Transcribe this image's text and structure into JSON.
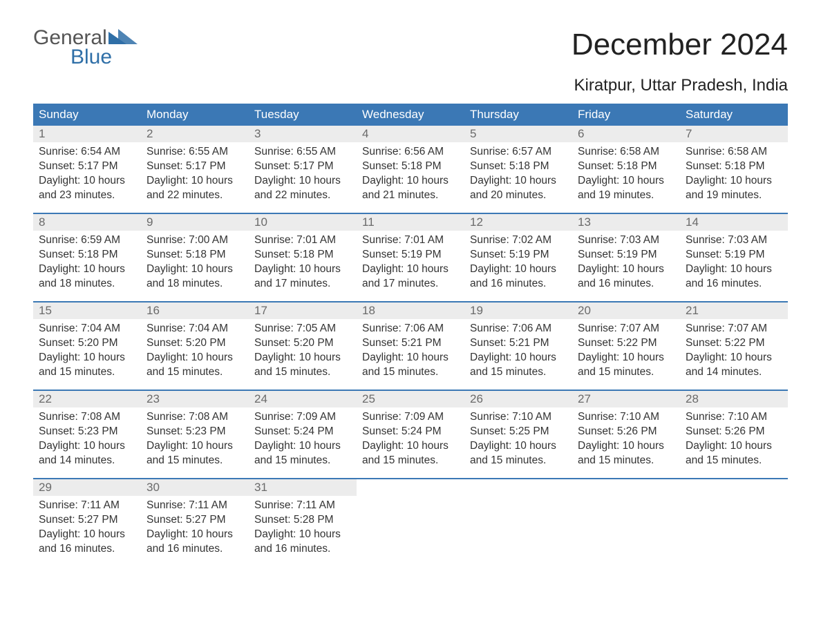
{
  "logo": {
    "line1": "General",
    "line2": "Blue"
  },
  "title": "December 2024",
  "subtitle": "Kiratpur, Uttar Pradesh, India",
  "colors": {
    "header_bg": "#3b78b5",
    "header_text": "#ffffff",
    "daynum_bg": "#ececec",
    "daynum_text": "#6a6a6a",
    "body_text": "#333333",
    "logo_gray": "#555555",
    "logo_blue": "#2f6fa7",
    "week_border": "#3b78b5"
  },
  "day_headers": [
    "Sunday",
    "Monday",
    "Tuesday",
    "Wednesday",
    "Thursday",
    "Friday",
    "Saturday"
  ],
  "weeks": [
    [
      {
        "n": "1",
        "sunrise": "Sunrise: 6:54 AM",
        "sunset": "Sunset: 5:17 PM",
        "dl1": "Daylight: 10 hours",
        "dl2": "and 23 minutes."
      },
      {
        "n": "2",
        "sunrise": "Sunrise: 6:55 AM",
        "sunset": "Sunset: 5:17 PM",
        "dl1": "Daylight: 10 hours",
        "dl2": "and 22 minutes."
      },
      {
        "n": "3",
        "sunrise": "Sunrise: 6:55 AM",
        "sunset": "Sunset: 5:17 PM",
        "dl1": "Daylight: 10 hours",
        "dl2": "and 22 minutes."
      },
      {
        "n": "4",
        "sunrise": "Sunrise: 6:56 AM",
        "sunset": "Sunset: 5:18 PM",
        "dl1": "Daylight: 10 hours",
        "dl2": "and 21 minutes."
      },
      {
        "n": "5",
        "sunrise": "Sunrise: 6:57 AM",
        "sunset": "Sunset: 5:18 PM",
        "dl1": "Daylight: 10 hours",
        "dl2": "and 20 minutes."
      },
      {
        "n": "6",
        "sunrise": "Sunrise: 6:58 AM",
        "sunset": "Sunset: 5:18 PM",
        "dl1": "Daylight: 10 hours",
        "dl2": "and 19 minutes."
      },
      {
        "n": "7",
        "sunrise": "Sunrise: 6:58 AM",
        "sunset": "Sunset: 5:18 PM",
        "dl1": "Daylight: 10 hours",
        "dl2": "and 19 minutes."
      }
    ],
    [
      {
        "n": "8",
        "sunrise": "Sunrise: 6:59 AM",
        "sunset": "Sunset: 5:18 PM",
        "dl1": "Daylight: 10 hours",
        "dl2": "and 18 minutes."
      },
      {
        "n": "9",
        "sunrise": "Sunrise: 7:00 AM",
        "sunset": "Sunset: 5:18 PM",
        "dl1": "Daylight: 10 hours",
        "dl2": "and 18 minutes."
      },
      {
        "n": "10",
        "sunrise": "Sunrise: 7:01 AM",
        "sunset": "Sunset: 5:18 PM",
        "dl1": "Daylight: 10 hours",
        "dl2": "and 17 minutes."
      },
      {
        "n": "11",
        "sunrise": "Sunrise: 7:01 AM",
        "sunset": "Sunset: 5:19 PM",
        "dl1": "Daylight: 10 hours",
        "dl2": "and 17 minutes."
      },
      {
        "n": "12",
        "sunrise": "Sunrise: 7:02 AM",
        "sunset": "Sunset: 5:19 PM",
        "dl1": "Daylight: 10 hours",
        "dl2": "and 16 minutes."
      },
      {
        "n": "13",
        "sunrise": "Sunrise: 7:03 AM",
        "sunset": "Sunset: 5:19 PM",
        "dl1": "Daylight: 10 hours",
        "dl2": "and 16 minutes."
      },
      {
        "n": "14",
        "sunrise": "Sunrise: 7:03 AM",
        "sunset": "Sunset: 5:19 PM",
        "dl1": "Daylight: 10 hours",
        "dl2": "and 16 minutes."
      }
    ],
    [
      {
        "n": "15",
        "sunrise": "Sunrise: 7:04 AM",
        "sunset": "Sunset: 5:20 PM",
        "dl1": "Daylight: 10 hours",
        "dl2": "and 15 minutes."
      },
      {
        "n": "16",
        "sunrise": "Sunrise: 7:04 AM",
        "sunset": "Sunset: 5:20 PM",
        "dl1": "Daylight: 10 hours",
        "dl2": "and 15 minutes."
      },
      {
        "n": "17",
        "sunrise": "Sunrise: 7:05 AM",
        "sunset": "Sunset: 5:20 PM",
        "dl1": "Daylight: 10 hours",
        "dl2": "and 15 minutes."
      },
      {
        "n": "18",
        "sunrise": "Sunrise: 7:06 AM",
        "sunset": "Sunset: 5:21 PM",
        "dl1": "Daylight: 10 hours",
        "dl2": "and 15 minutes."
      },
      {
        "n": "19",
        "sunrise": "Sunrise: 7:06 AM",
        "sunset": "Sunset: 5:21 PM",
        "dl1": "Daylight: 10 hours",
        "dl2": "and 15 minutes."
      },
      {
        "n": "20",
        "sunrise": "Sunrise: 7:07 AM",
        "sunset": "Sunset: 5:22 PM",
        "dl1": "Daylight: 10 hours",
        "dl2": "and 15 minutes."
      },
      {
        "n": "21",
        "sunrise": "Sunrise: 7:07 AM",
        "sunset": "Sunset: 5:22 PM",
        "dl1": "Daylight: 10 hours",
        "dl2": "and 14 minutes."
      }
    ],
    [
      {
        "n": "22",
        "sunrise": "Sunrise: 7:08 AM",
        "sunset": "Sunset: 5:23 PM",
        "dl1": "Daylight: 10 hours",
        "dl2": "and 14 minutes."
      },
      {
        "n": "23",
        "sunrise": "Sunrise: 7:08 AM",
        "sunset": "Sunset: 5:23 PM",
        "dl1": "Daylight: 10 hours",
        "dl2": "and 15 minutes."
      },
      {
        "n": "24",
        "sunrise": "Sunrise: 7:09 AM",
        "sunset": "Sunset: 5:24 PM",
        "dl1": "Daylight: 10 hours",
        "dl2": "and 15 minutes."
      },
      {
        "n": "25",
        "sunrise": "Sunrise: 7:09 AM",
        "sunset": "Sunset: 5:24 PM",
        "dl1": "Daylight: 10 hours",
        "dl2": "and 15 minutes."
      },
      {
        "n": "26",
        "sunrise": "Sunrise: 7:10 AM",
        "sunset": "Sunset: 5:25 PM",
        "dl1": "Daylight: 10 hours",
        "dl2": "and 15 minutes."
      },
      {
        "n": "27",
        "sunrise": "Sunrise: 7:10 AM",
        "sunset": "Sunset: 5:26 PM",
        "dl1": "Daylight: 10 hours",
        "dl2": "and 15 minutes."
      },
      {
        "n": "28",
        "sunrise": "Sunrise: 7:10 AM",
        "sunset": "Sunset: 5:26 PM",
        "dl1": "Daylight: 10 hours",
        "dl2": "and 15 minutes."
      }
    ],
    [
      {
        "n": "29",
        "sunrise": "Sunrise: 7:11 AM",
        "sunset": "Sunset: 5:27 PM",
        "dl1": "Daylight: 10 hours",
        "dl2": "and 16 minutes."
      },
      {
        "n": "30",
        "sunrise": "Sunrise: 7:11 AM",
        "sunset": "Sunset: 5:27 PM",
        "dl1": "Daylight: 10 hours",
        "dl2": "and 16 minutes."
      },
      {
        "n": "31",
        "sunrise": "Sunrise: 7:11 AM",
        "sunset": "Sunset: 5:28 PM",
        "dl1": "Daylight: 10 hours",
        "dl2": "and 16 minutes."
      },
      null,
      null,
      null,
      null
    ]
  ]
}
